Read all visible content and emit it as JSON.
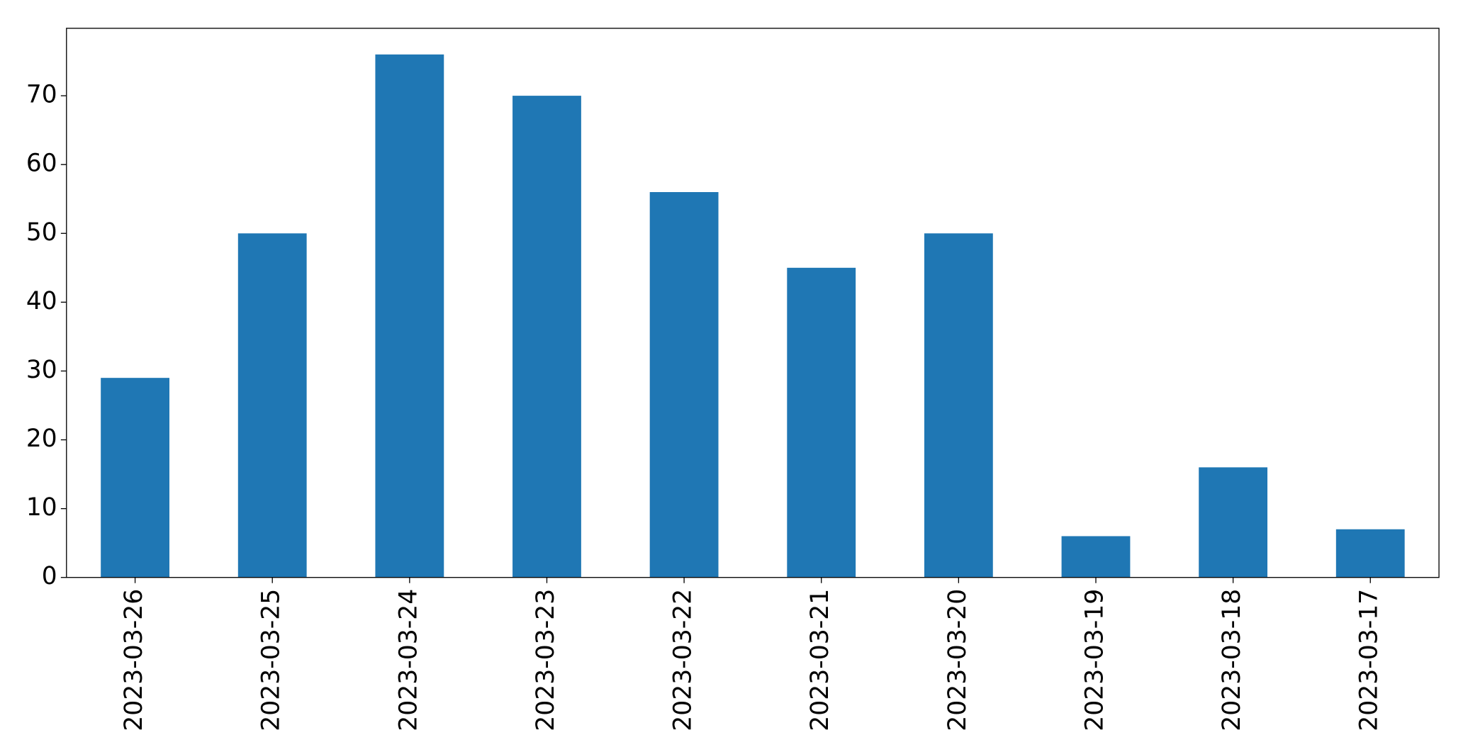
{
  "chart_data": {
    "type": "bar",
    "categories": [
      "2023-03-26",
      "2023-03-25",
      "2023-03-24",
      "2023-03-23",
      "2023-03-22",
      "2023-03-21",
      "2023-03-20",
      "2023-03-19",
      "2023-03-18",
      "2023-03-17"
    ],
    "values": [
      29,
      50,
      76,
      70,
      56,
      45,
      50,
      6,
      16,
      7
    ],
    "color": "#1f77b4",
    "ylim": [
      0,
      79.8
    ],
    "yticks": [
      0,
      10,
      20,
      30,
      40,
      50,
      60,
      70
    ],
    "grid": false
  }
}
